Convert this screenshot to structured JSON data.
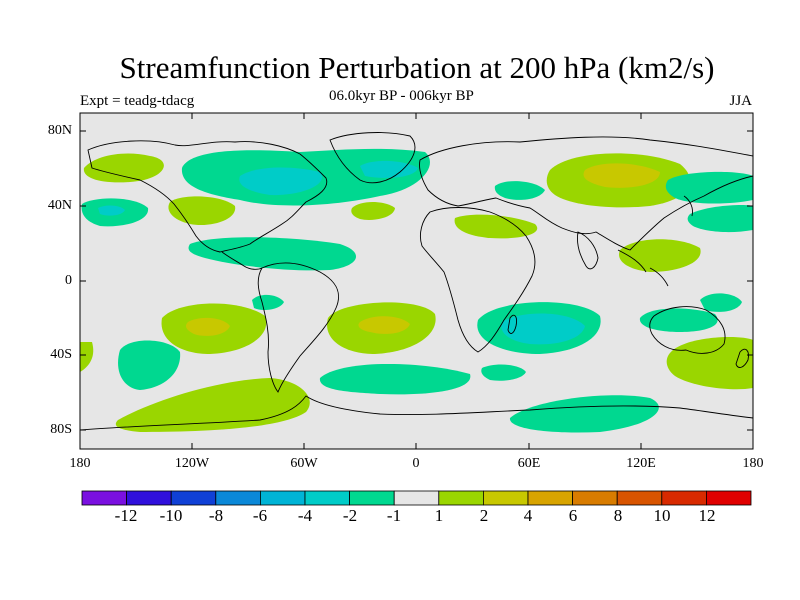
{
  "title": "Streamfunction Perturbation at 200 hPa (km2/s)",
  "subtitle": "06.0kyr BP - 006kyr BP",
  "left_label": "Expt = teadg-tdacg",
  "right_label": "JJA",
  "axes": {
    "lat_labels": [
      "80N",
      "40N",
      "0",
      "40S",
      "80S"
    ],
    "lon_labels": [
      "180",
      "120W",
      "60W",
      "0",
      "60E",
      "120E",
      "180"
    ]
  },
  "colorbar": {
    "labels": [
      "-12",
      "-10",
      "-8",
      "-6",
      "-4",
      "-2",
      "-1",
      "1",
      "2",
      "4",
      "6",
      "8",
      "10",
      "12"
    ],
    "colors": [
      "#7a10e0",
      "#3010dc",
      "#1040d6",
      "#0a88d8",
      "#00b4d6",
      "#00ccc8",
      "#00d890",
      "#e6e6e6",
      "#9ad600",
      "#c8c800",
      "#d8a400",
      "#d87c00",
      "#d85400",
      "#d82a00",
      "#e00000"
    ]
  },
  "chart_data": {
    "type": "filled-contour-map",
    "title": "Streamfunction Perturbation at 200 hPa (km2/s)",
    "subtitle": "06.0kyr BP - 006kyr BP",
    "season": "JJA",
    "experiment": "Expt = teadg-tdacg",
    "lon_range": [
      -180,
      180
    ],
    "lat_range": [
      -90,
      90
    ],
    "levels": [
      -12,
      -10,
      -8,
      -6,
      -4,
      -2,
      -1,
      1,
      2,
      4,
      6,
      8,
      10,
      12
    ],
    "features": [
      {
        "name": "north-atlantic-negative-anomaly",
        "lon": -50,
        "lat": 62,
        "level_min": -4,
        "level_max": -1
      },
      {
        "name": "south-indian-negative-anomaly",
        "lon": 80,
        "lat": -25,
        "level_min": -4,
        "level_max": -1
      },
      {
        "name": "east-asia-positive-anomaly",
        "lon": 105,
        "lat": 55,
        "level_min": 1,
        "level_max": 4
      },
      {
        "name": "south-pacific-positive-anomaly",
        "lon": -120,
        "lat": -25,
        "level_min": 1,
        "level_max": 4
      },
      {
        "name": "south-atlantic-positive-anomaly",
        "lon": -15,
        "lat": -25,
        "level_min": 1,
        "level_max": 4
      },
      {
        "name": "southern-ocean-positive-band",
        "lon": -90,
        "lat": -63,
        "level_min": 1,
        "level_max": 2
      },
      {
        "name": "antarctic-coast-negative-band",
        "lon": 80,
        "lat": -70,
        "level_min": -2,
        "level_max": -1
      }
    ]
  }
}
